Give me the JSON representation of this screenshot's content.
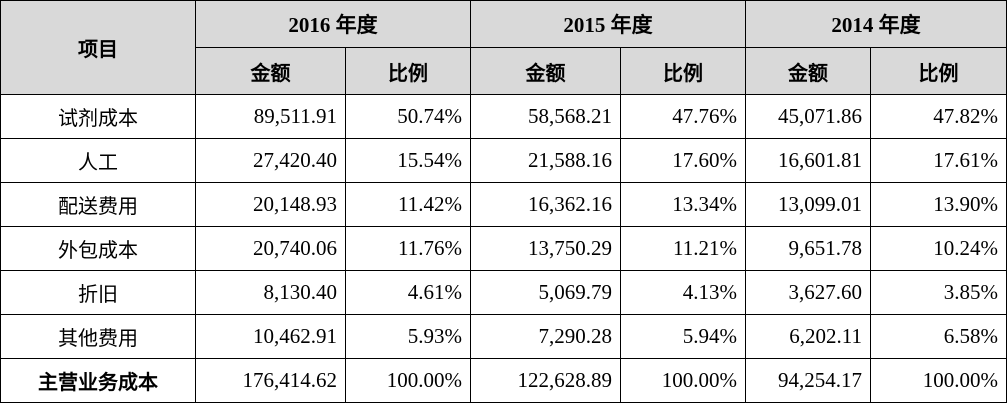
{
  "table": {
    "corner": "项目",
    "years": [
      "2016 年度",
      "2015 年度",
      "2014 年度"
    ],
    "subheaders": [
      [
        "金额",
        "比例"
      ],
      [
        "金额",
        "比例"
      ],
      [
        "金额",
        "比例"
      ]
    ],
    "rows": [
      [
        "试剂成本",
        "89,511.91",
        "50.74%",
        "58,568.21",
        "47.76%",
        "45,071.86",
        "47.82%"
      ],
      [
        "人工",
        "27,420.40",
        "15.54%",
        "21,588.16",
        "17.60%",
        "16,601.81",
        "17.61%"
      ],
      [
        "配送费用",
        "20,148.93",
        "11.42%",
        "16,362.16",
        "13.34%",
        "13,099.01",
        "13.90%"
      ],
      [
        "外包成本",
        "20,740.06",
        "11.76%",
        "13,750.29",
        "11.21%",
        "9,651.78",
        "10.24%"
      ],
      [
        "折旧",
        "8,130.40",
        "4.61%",
        "5,069.79",
        "4.13%",
        "3,627.60",
        "3.85%"
      ],
      [
        "其他费用",
        "10,462.91",
        "5.93%",
        "7,290.28",
        "5.94%",
        "6,202.11",
        "6.58%"
      ],
      [
        "主营业务成本",
        "176,414.62",
        "100.00%",
        "122,628.89",
        "100.00%",
        "94,254.17",
        "100.00%"
      ]
    ]
  }
}
